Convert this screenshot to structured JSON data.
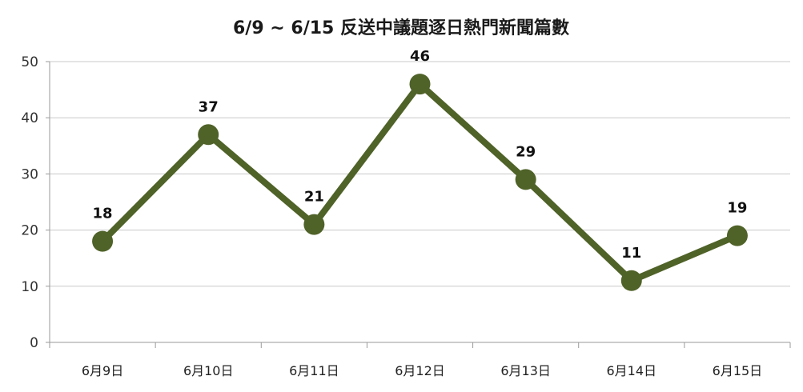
{
  "chart_data": {
    "type": "line",
    "title": "6/9 ~ 6/15 反送中議題逐日熱門新聞篇數",
    "xlabel": "",
    "ylabel": "",
    "categories": [
      "6月9日",
      "6月10日",
      "6月11日",
      "6月12日",
      "6月13日",
      "6月14日",
      "6月15日"
    ],
    "series": [
      {
        "values": [
          18,
          37,
          21,
          46,
          29,
          11,
          19
        ]
      }
    ],
    "ylim": [
      0,
      50
    ],
    "yticks": [
      0,
      10,
      20,
      30,
      40,
      50
    ],
    "grid": true,
    "legend": "none",
    "data_labels": true,
    "colors": {
      "line": "#4f6228",
      "marker": "#4f6228"
    }
  }
}
